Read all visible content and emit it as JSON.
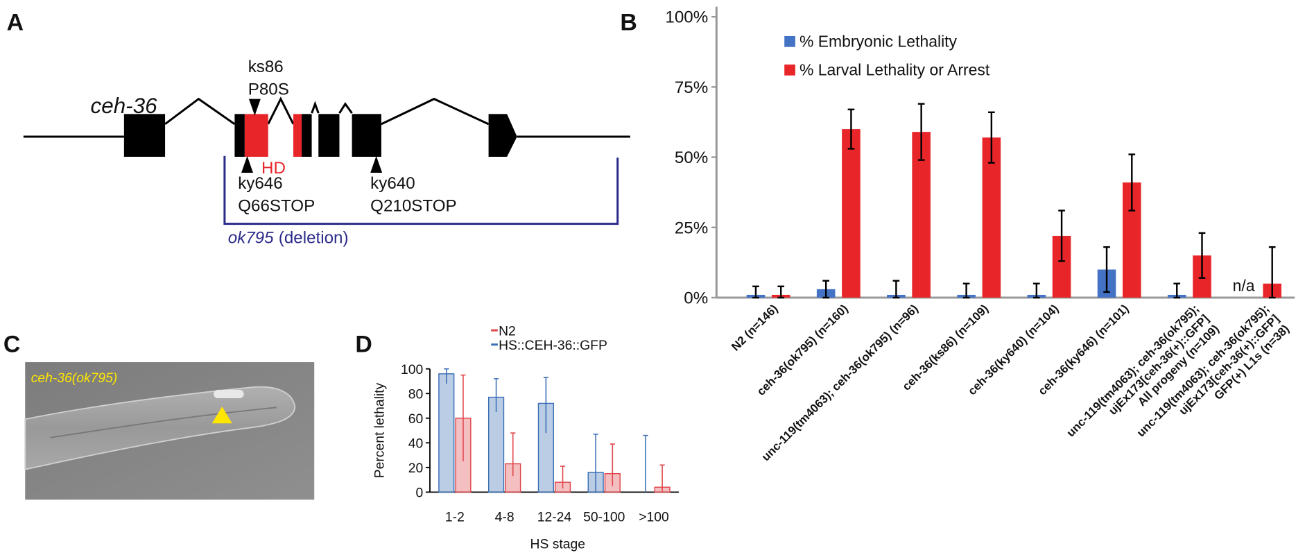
{
  "panel_labels": [
    "A",
    "B",
    "C",
    "D"
  ],
  "gene_diagram": {
    "gene": "ceh-36",
    "domain": "HD",
    "alleles": [
      {
        "name": "ks86",
        "change": "P80S"
      },
      {
        "name": "ky646",
        "change": "Q66STOP"
      },
      {
        "name": "ky640",
        "change": "Q210STOP"
      }
    ],
    "deletion": {
      "name": "ok795",
      "note": "(deletion)"
    }
  },
  "micrograph": {
    "label": "ceh-36(ok795)"
  },
  "chart_data": [
    {
      "type": "bar",
      "categories": [
        [
          "N2 (n=146)"
        ],
        [
          "ceh-36(ok795) (n=160)"
        ],
        [
          "unc-119(tm4063); ceh-36(ok795) (n=96)"
        ],
        [
          "ceh-36(ks86) (n=109)"
        ],
        [
          "ceh-36(ky640) (n=104)"
        ],
        [
          "ceh-36(ky646) (n=101)"
        ],
        [
          "unc-119(tm4063); ceh-36(ok795);",
          "ujEx173[ceh-36(+)::GFP]",
          "All progeny (n=109)"
        ],
        [
          "unc-119(tm4063); ceh-36(ok795);",
          "ujEx173[ceh-36(+)::GFP]",
          "GFP(+) L1s (n=38)"
        ]
      ],
      "series": [
        {
          "name": "% Embryonic Lethality",
          "color": "#4472c4",
          "values": [
            1,
            3,
            1,
            1,
            1,
            10,
            1,
            null
          ],
          "errors": [
            3,
            3,
            5,
            4,
            4,
            8,
            4,
            null
          ],
          "value_labels": [
            null,
            null,
            null,
            null,
            null,
            null,
            null,
            "n/a"
          ]
        },
        {
          "name": "% Larval Lethality or Arrest",
          "color": "#e8262a",
          "values": [
            1,
            60,
            59,
            57,
            22,
            41,
            15,
            5
          ],
          "errors": [
            3,
            7,
            10,
            9,
            9,
            10,
            8,
            13
          ]
        }
      ],
      "ylim": [
        0,
        100
      ],
      "yticks": [
        {
          "value": 0,
          "label": "0%"
        },
        {
          "value": 25,
          "label": "25%"
        },
        {
          "value": 50,
          "label": "50%"
        },
        {
          "value": 75,
          "label": "75%"
        },
        {
          "value": 100,
          "label": "100%"
        }
      ],
      "legend": "top-left"
    },
    {
      "type": "bar",
      "categories": [
        "1-2",
        "4-8",
        "12-24",
        "50-100",
        ">100"
      ],
      "series": [
        {
          "name": "N2",
          "color": "#e0474c",
          "values": [
            60,
            23,
            8,
            15,
            4
          ],
          "error_lower": [
            35,
            10,
            5,
            10,
            4
          ],
          "error_upper": [
            35,
            25,
            13,
            24,
            18
          ]
        },
        {
          "name": "HS::CEH-36::GFP",
          "color": "#3a6fb5",
          "values": [
            96,
            77,
            72,
            16,
            0
          ],
          "error_lower": [
            8,
            12,
            24,
            16,
            0
          ],
          "error_upper": [
            4,
            15,
            21,
            31,
            46
          ]
        }
      ],
      "ylim": [
        0,
        100
      ],
      "yticks": [
        0,
        20,
        40,
        60,
        80,
        100
      ],
      "xlabel": "HS stage",
      "ylabel": "Percent lethality",
      "legend": "top-left"
    }
  ]
}
